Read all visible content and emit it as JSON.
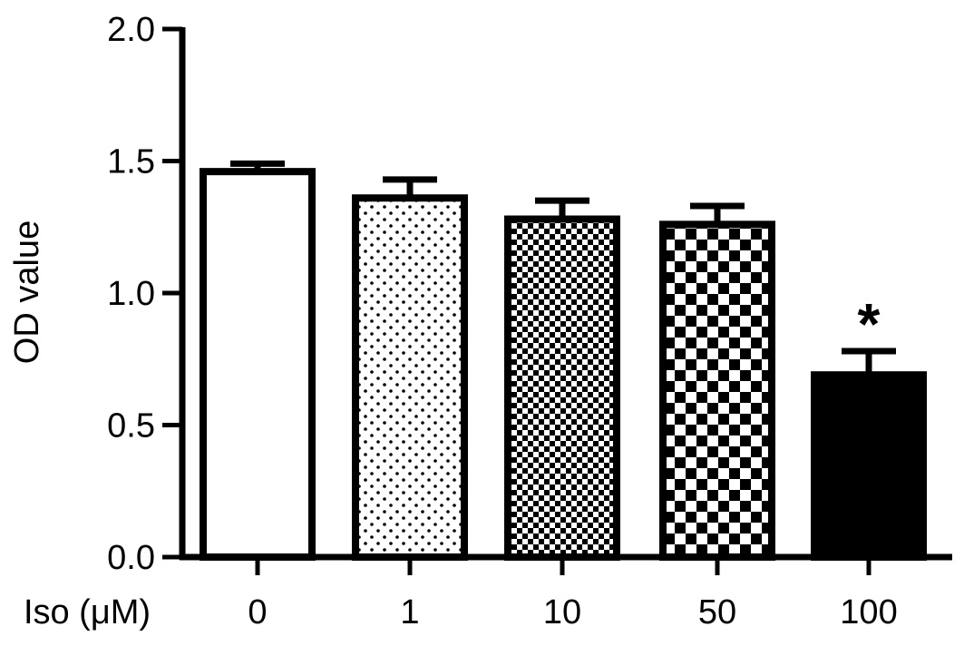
{
  "chart_data": {
    "type": "bar",
    "title": "",
    "xlabel": "Iso (μM)",
    "ylabel": "OD value",
    "categories": [
      "0",
      "1",
      "10",
      "50",
      "100"
    ],
    "values": [
      1.46,
      1.36,
      1.28,
      1.26,
      0.69
    ],
    "errors": [
      0.03,
      0.07,
      0.07,
      0.07,
      0.09
    ],
    "patterns": [
      "none",
      "dots",
      "checker-fine",
      "checker-coarse",
      "solid"
    ],
    "annotations": [
      {
        "category": "100",
        "text": "*"
      }
    ],
    "ylim": [
      0,
      2.0
    ],
    "yticks": [
      0.0,
      0.5,
      1.0,
      1.5,
      2.0
    ],
    "ytick_labels": [
      "0.0",
      "0.5",
      "1.0",
      "1.5",
      "2.0"
    ],
    "grid": false,
    "colors": {
      "bar_stroke": "#000000",
      "bar_fill": "#ffffff",
      "solid_fill": "#000000"
    }
  }
}
